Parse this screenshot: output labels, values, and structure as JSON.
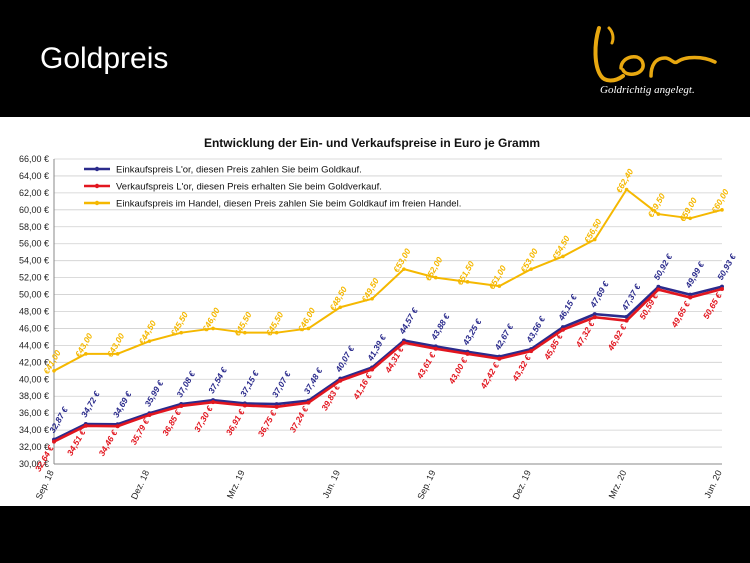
{
  "slide": {
    "title": "Goldpreis"
  },
  "brand": {
    "tagline": "Goldrichtig angelegt."
  },
  "colors": {
    "series1": "#2b2b8c",
    "series2": "#e2161f",
    "series3": "#f5b800"
  },
  "chart_data": {
    "type": "line",
    "title": "Entwicklung der Ein- und Verkaufspreise in Euro je Gramm",
    "xlabel": "",
    "ylabel": "",
    "ylim": [
      30,
      66
    ],
    "y_ticks": [
      "30,00 €",
      "32,00 €",
      "34,00 €",
      "36,00 €",
      "38,00 €",
      "40,00 €",
      "42,00 €",
      "44,00 €",
      "46,00 €",
      "48,00 €",
      "50,00 €",
      "52,00 €",
      "54,00 €",
      "56,00 €",
      "58,00 €",
      "60,00 €",
      "62,00 €",
      "64,00 €",
      "66,00 €"
    ],
    "x_tick_labels": [
      {
        "index": 0,
        "label": "Sep. 18"
      },
      {
        "index": 3,
        "label": "Dez. 18"
      },
      {
        "index": 6,
        "label": "Mrz. 19"
      },
      {
        "index": 9,
        "label": "Jun. 19"
      },
      {
        "index": 12,
        "label": "Sep. 19"
      },
      {
        "index": 15,
        "label": "Dez. 19"
      },
      {
        "index": 18,
        "label": "Mrz. 20"
      },
      {
        "index": 21,
        "label": "Jun. 20"
      }
    ],
    "grid": true,
    "legend_position": "top-left",
    "series": [
      {
        "name": "Einkaufspreis L'or, diesen Preis zahlen Sie beim Goldkauf.",
        "values": [
          32.87,
          34.72,
          34.69,
          35.99,
          37.08,
          37.54,
          37.15,
          37.07,
          37.48,
          40.07,
          41.39,
          44.57,
          43.88,
          43.25,
          42.67,
          43.56,
          46.15,
          47.69,
          47.37,
          50.92,
          49.99,
          50.93
        ],
        "labels": [
          "32,87 €",
          "34,72 €",
          "34,69 €",
          "35,99 €",
          "37,08 €",
          "37,54 €",
          "37,15 €",
          "37,07 €",
          "37,48 €",
          "40,07 €",
          "41,39 €",
          "44,57 €",
          "43,88 €",
          "43,25 €",
          "42,67 €",
          "43,56 €",
          "46,15 €",
          "47,69 €",
          "47,37 €",
          "50,92 €",
          "49,99 €",
          "50,93 €"
        ]
      },
      {
        "name": "Verkaufspreis L'or, diesen Preis erhalten Sie beim Goldverkauf.",
        "values": [
          32.64,
          34.51,
          34.46,
          35.79,
          36.85,
          37.3,
          36.91,
          36.75,
          37.24,
          39.83,
          41.16,
          44.31,
          43.61,
          43.0,
          42.42,
          43.32,
          45.85,
          47.32,
          46.92,
          50.59,
          49.65,
          50.65
        ],
        "labels": [
          "32,64 €",
          "34,51 €",
          "34,46 €",
          "35,79 €",
          "36,85 €",
          "37,30 €",
          "36,91 €",
          "36,75 €",
          "37,24 €",
          "39,83 €",
          "41,16 €",
          "44,31 €",
          "43,61 €",
          "43,00 €",
          "42,42 €",
          "43,32 €",
          "45,85 €",
          "47,32 €",
          "46,92 €",
          "50,59 €",
          "49,65 €",
          "50,65 €"
        ]
      },
      {
        "name": "Einkaufspreis im Handel, diesen Preis zahlen Sie beim Goldkauf im freien Handel.",
        "values": [
          41.0,
          43.0,
          43.0,
          44.5,
          45.5,
          46.0,
          45.5,
          45.5,
          46.0,
          48.5,
          49.5,
          53.0,
          52.0,
          51.5,
          51.0,
          53.0,
          54.5,
          56.5,
          62.4,
          59.5,
          59.0,
          60.0
        ],
        "labels": [
          "€41,00",
          "€43,00",
          "€43,00",
          "€44,50",
          "€45,50",
          "€46,00",
          "€45,50",
          "€45,50",
          "€46,00",
          "€48,50",
          "€49,50",
          "€53,00",
          "€52,00",
          "€51,50",
          "€51,00",
          "€53,00",
          "€54,50",
          "€56,50",
          "€62,40",
          "€59,50",
          "€59,00",
          "€60,00"
        ]
      }
    ]
  }
}
